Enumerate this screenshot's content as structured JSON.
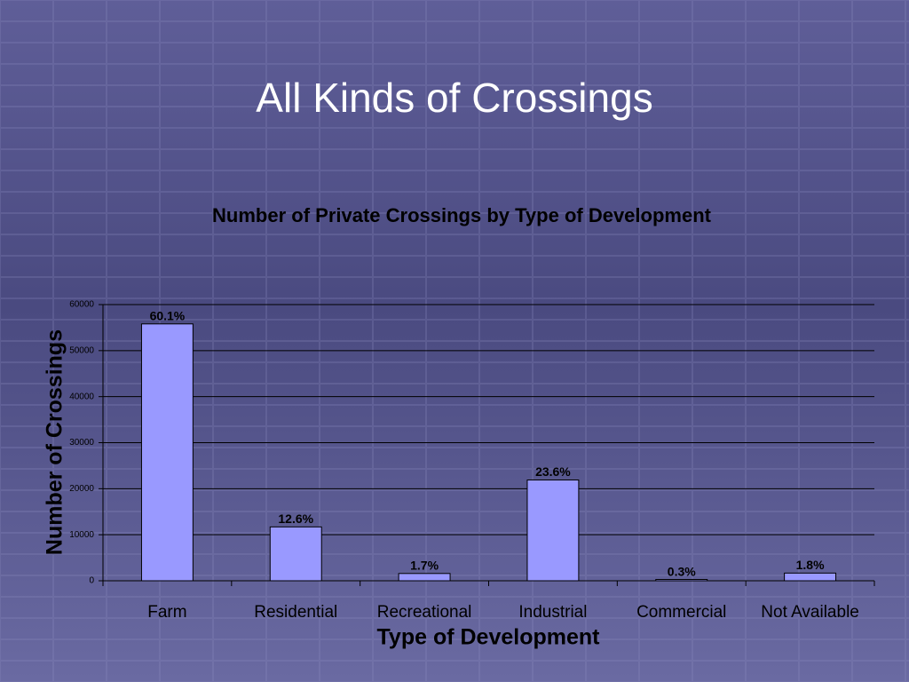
{
  "slide_title": "All Kinds of Crossings",
  "chart_data": {
    "type": "bar",
    "title": "Number of Private Crossings by Type of Development",
    "x_label": "Type of Development",
    "y_label": "Number of Crossings",
    "categories": [
      "Farm",
      "Residential",
      "Recreational",
      "Industrial",
      "Commercial",
      "Not Available"
    ],
    "values": [
      55800,
      11700,
      1580,
      21900,
      280,
      1670
    ],
    "share_labels": [
      "60.1%",
      "12.6%",
      "1.7%",
      "23.6%",
      "0.3%",
      "1.8%"
    ],
    "color": "#9999ff",
    "ylim": [
      0,
      60000
    ],
    "yticks": [
      0,
      10000,
      20000,
      30000,
      40000,
      50000,
      60000
    ],
    "grid": true
  }
}
